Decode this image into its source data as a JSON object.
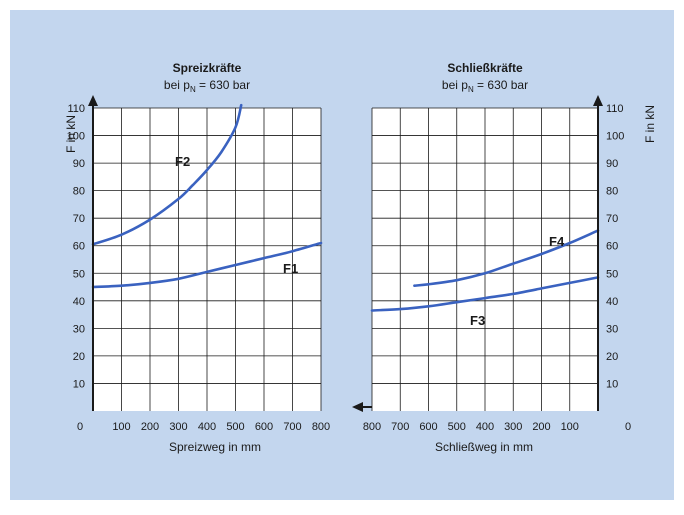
{
  "chart_data": [
    {
      "type": "line",
      "title": "Spreizkräfte",
      "subtitle_prefix": "bei p",
      "subtitle_sub": "N",
      "subtitle_suffix": " = 630 bar",
      "xlabel": "Spreizweg in mm",
      "ylabel": "F in kN",
      "xlim": [
        0,
        800
      ],
      "ylim": [
        0,
        110
      ],
      "x_direction": "increasing-right",
      "x_ticks": [
        "0",
        "100",
        "200",
        "300",
        "400",
        "500",
        "600",
        "700",
        "800"
      ],
      "y_ticks": [
        "10",
        "20",
        "30",
        "40",
        "50",
        "60",
        "70",
        "80",
        "90",
        "100",
        "110"
      ],
      "grid": true,
      "series": [
        {
          "name": "F1",
          "x": [
            0,
            100,
            200,
            300,
            400,
            500,
            600,
            700,
            800
          ],
          "y": [
            45,
            45.5,
            46.5,
            48,
            50.5,
            53,
            55.5,
            58,
            61
          ]
        },
        {
          "name": "F2",
          "x": [
            0,
            100,
            200,
            300,
            350,
            400,
            450,
            500,
            520
          ],
          "y": [
            60.5,
            64,
            69.5,
            77,
            82,
            87.5,
            94,
            103,
            111
          ]
        }
      ]
    },
    {
      "type": "line",
      "title": "Schließkräfte",
      "subtitle_prefix": "bei p",
      "subtitle_sub": "N",
      "subtitle_suffix": " = 630 bar",
      "xlabel": "Schließweg in mm",
      "ylabel": "F in kN",
      "xlim": [
        800,
        0
      ],
      "ylim": [
        0,
        110
      ],
      "x_direction": "increasing-left",
      "x_ticks": [
        "800",
        "700",
        "600",
        "500",
        "400",
        "300",
        "200",
        "100",
        "0"
      ],
      "y_ticks": [
        "10",
        "20",
        "30",
        "40",
        "50",
        "60",
        "70",
        "80",
        "90",
        "100",
        "110"
      ],
      "grid": true,
      "series": [
        {
          "name": "F3",
          "x": [
            800,
            700,
            600,
            500,
            400,
            300,
            200,
            100,
            0
          ],
          "y": [
            36.5,
            37,
            38,
            39.5,
            41,
            42.5,
            44.5,
            46.5,
            48.5
          ]
        },
        {
          "name": "F4",
          "x": [
            650,
            600,
            500,
            400,
            300,
            200,
            100,
            0
          ],
          "y": [
            45.5,
            46,
            47.5,
            50,
            53.5,
            57,
            61,
            65.5
          ]
        }
      ]
    }
  ],
  "colors": {
    "background": "#c3d6ee",
    "plot_background": "#ffffff",
    "grid": "#1a1a1a",
    "curve": "#3a62c0",
    "axis": "#1a1a1a"
  }
}
